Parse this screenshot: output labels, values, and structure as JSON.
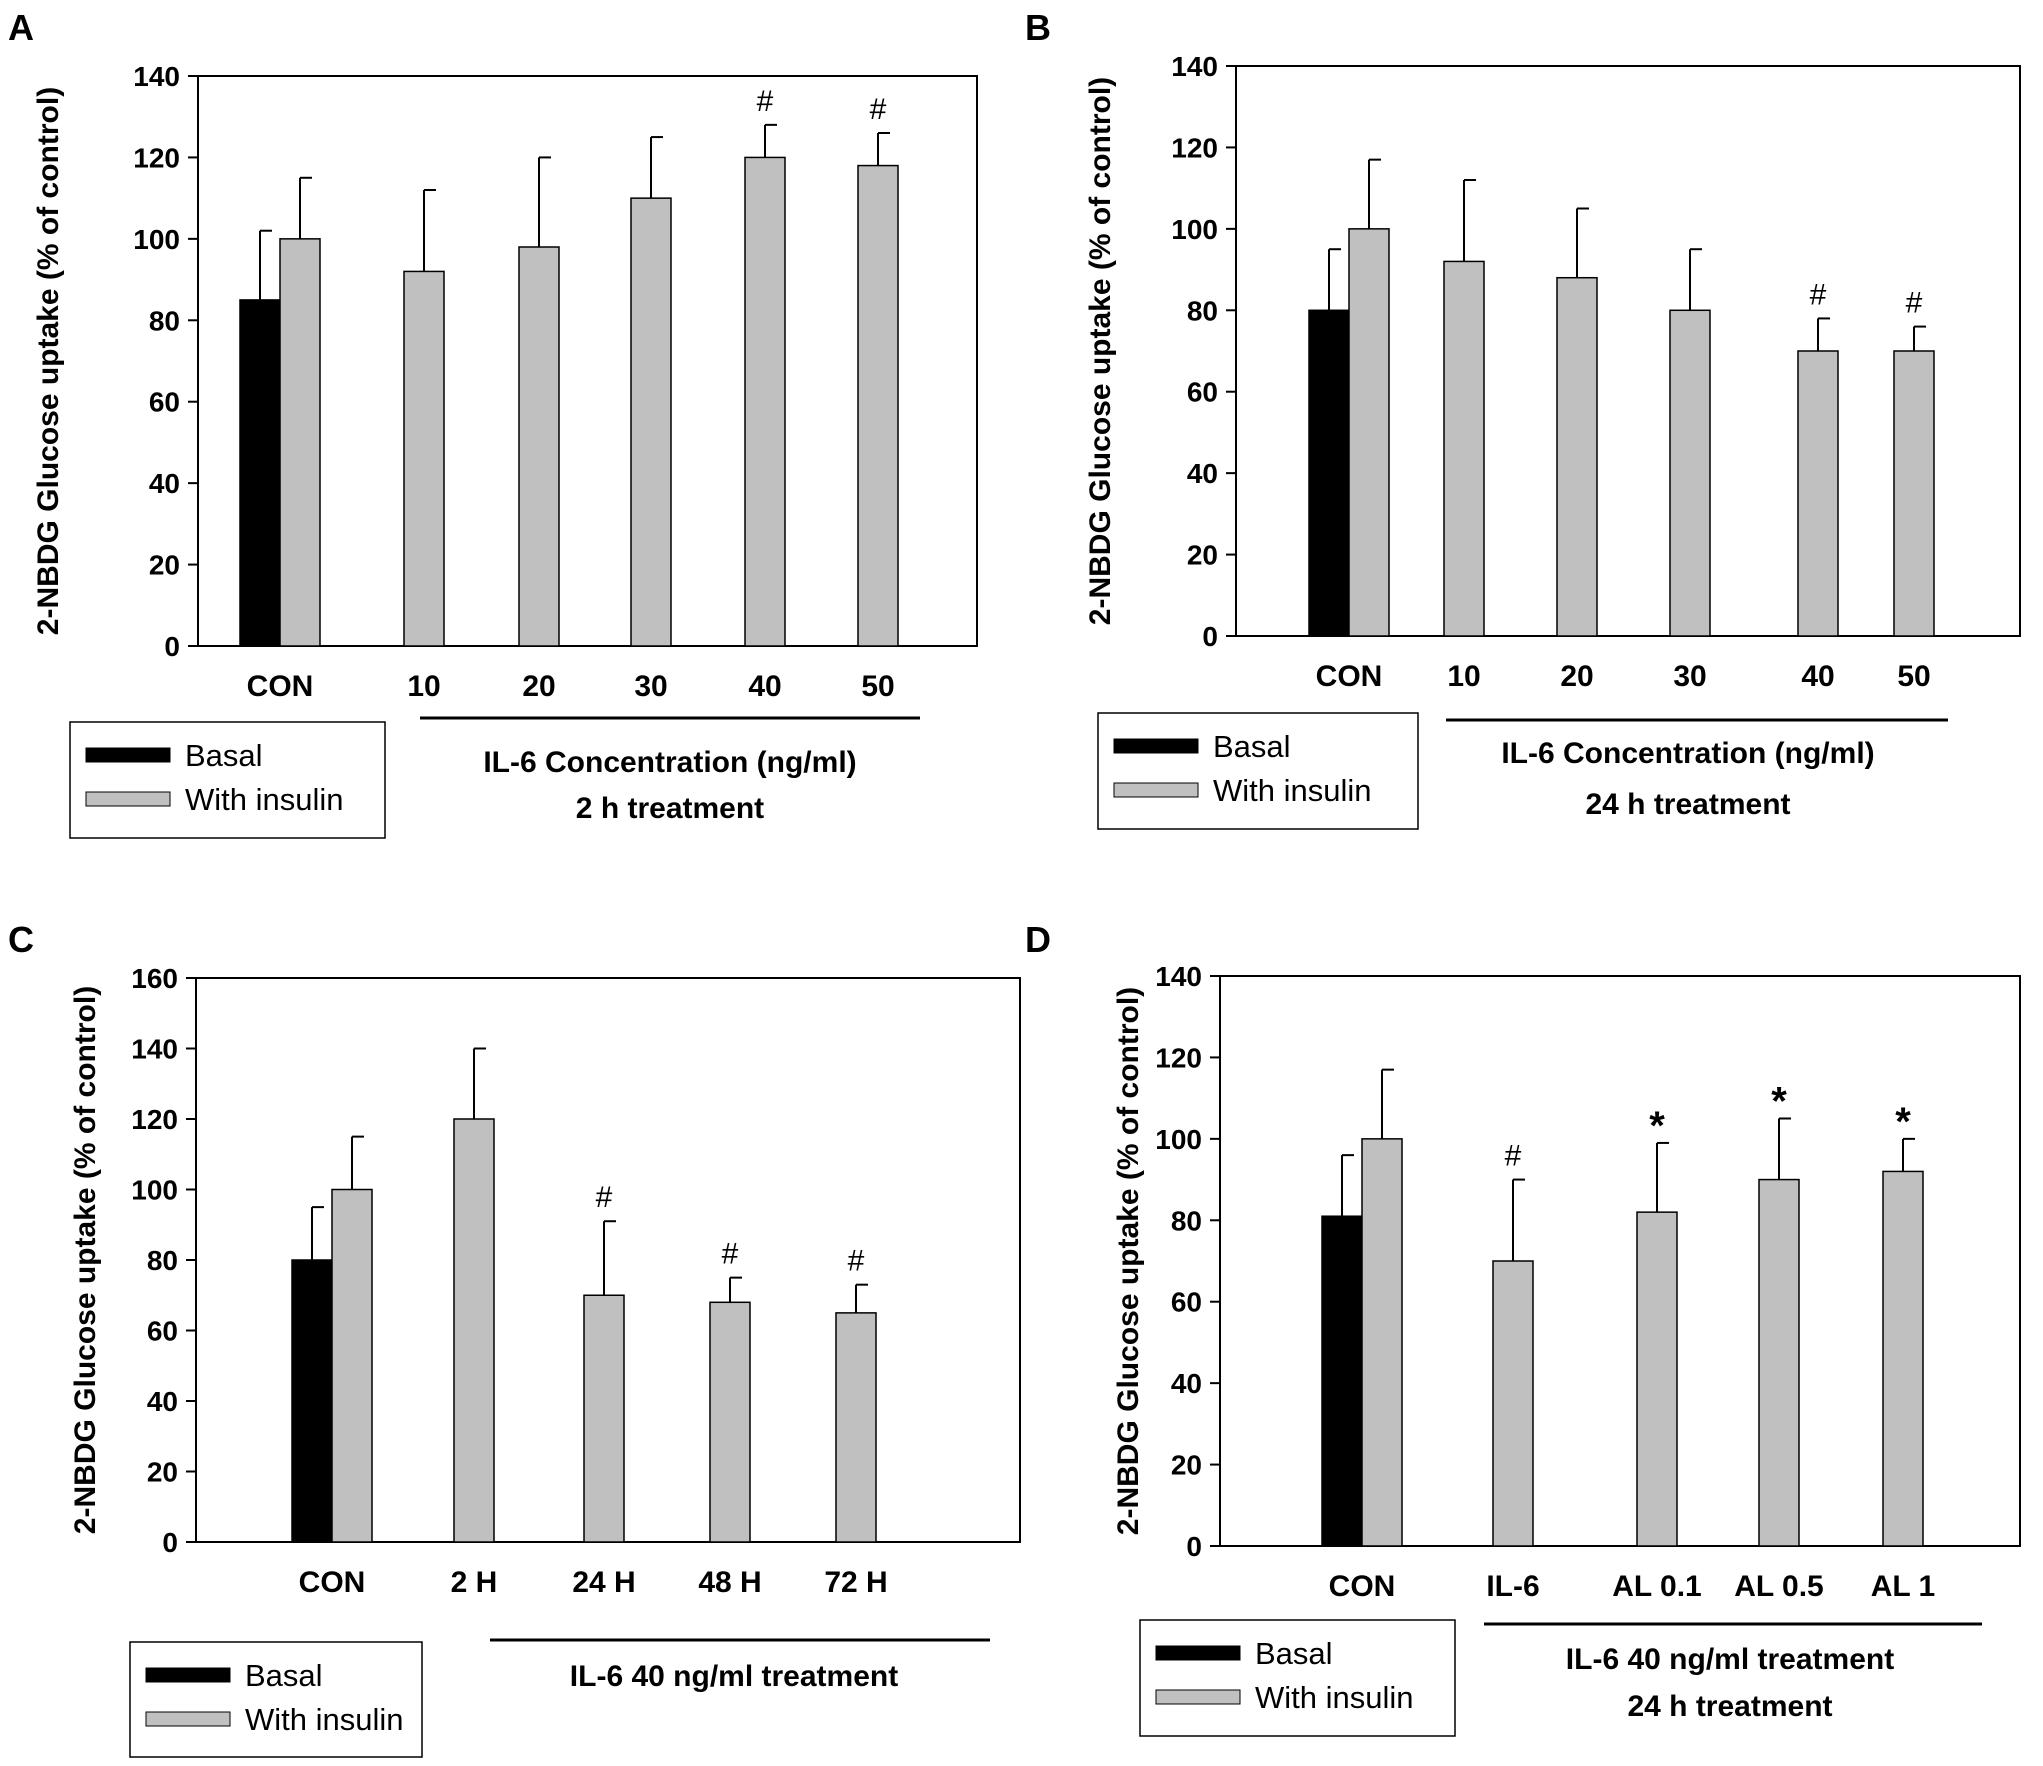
{
  "colors": {
    "basal": "#000000",
    "with_insulin": "#c0c0c0",
    "axis": "#000000",
    "bracket": "#000000"
  },
  "legend": {
    "basal_label": "Basal",
    "insulin_label": "With insulin"
  },
  "chart_data": [
    {
      "id": "A",
      "panel_letter": "A",
      "type": "bar",
      "ylabel": "2-NBDG Glucose uptake (% of control)",
      "ylim": [
        0,
        140
      ],
      "yticks": [
        0,
        20,
        40,
        60,
        80,
        100,
        120,
        140
      ],
      "categories": [
        "CON",
        "10",
        "20",
        "30",
        "40",
        "50"
      ],
      "basal": {
        "value": 85,
        "err": 17
      },
      "series": [
        {
          "name": "With insulin",
          "values": [
            100,
            92,
            98,
            110,
            120,
            118
          ],
          "errors": [
            15,
            20,
            22,
            15,
            8,
            8
          ]
        }
      ],
      "significance": [
        "",
        "",
        "",
        "",
        "#",
        "#"
      ],
      "group_label": [
        "IL-6 Concentration (ng/ml)",
        "2 h treatment"
      ],
      "legend": "bottom-left"
    },
    {
      "id": "B",
      "panel_letter": "B",
      "type": "bar",
      "ylabel": "2-NBDG Glucose uptake (% of control)",
      "ylim": [
        0,
        140
      ],
      "yticks": [
        0,
        20,
        40,
        60,
        80,
        100,
        120,
        140
      ],
      "categories": [
        "CON",
        "10",
        "20",
        "30",
        "40",
        "50"
      ],
      "basal": {
        "value": 80,
        "err": 15
      },
      "series": [
        {
          "name": "With insulin",
          "values": [
            100,
            92,
            88,
            80,
            70,
            70
          ],
          "errors": [
            17,
            20,
            17,
            15,
            8,
            6
          ]
        }
      ],
      "significance": [
        "",
        "",
        "",
        "",
        "#",
        "#"
      ],
      "group_label": [
        "IL-6 Concentration (ng/ml)",
        "24 h treatment"
      ],
      "legend": "bottom-left"
    },
    {
      "id": "C",
      "panel_letter": "C",
      "type": "bar",
      "ylabel": "2-NBDG Glucose uptake (% of control)",
      "ylim": [
        0,
        160
      ],
      "yticks": [
        0,
        20,
        40,
        60,
        80,
        100,
        120,
        140,
        160
      ],
      "categories": [
        "CON",
        "2 H",
        "24 H",
        "48 H",
        "72 H"
      ],
      "basal": {
        "value": 80,
        "err": 15
      },
      "series": [
        {
          "name": "With insulin",
          "values": [
            100,
            120,
            70,
            68,
            65
          ],
          "errors": [
            15,
            20,
            21,
            7,
            8
          ]
        }
      ],
      "significance": [
        "",
        "",
        "#",
        "#",
        "#"
      ],
      "group_label": [
        "IL-6 40 ng/ml treatment"
      ],
      "legend": "bottom-left"
    },
    {
      "id": "D",
      "panel_letter": "D",
      "type": "bar",
      "ylabel": "2-NBDG Glucose uptake (% of control)",
      "ylim": [
        0,
        140
      ],
      "yticks": [
        0,
        20,
        40,
        60,
        80,
        100,
        120,
        140
      ],
      "categories": [
        "CON",
        "IL-6",
        "AL 0.1",
        "AL 0.5",
        "AL 1"
      ],
      "basal": {
        "value": 81,
        "err": 15
      },
      "series": [
        {
          "name": "With insulin",
          "values": [
            100,
            70,
            82,
            90,
            92
          ],
          "errors": [
            17,
            20,
            17,
            15,
            8
          ]
        }
      ],
      "significance": [
        "",
        "#",
        "*",
        "*",
        "*"
      ],
      "group_label": [
        "IL-6 40 ng/ml treatment",
        "24 h treatment"
      ],
      "legend": "bottom-left"
    }
  ]
}
